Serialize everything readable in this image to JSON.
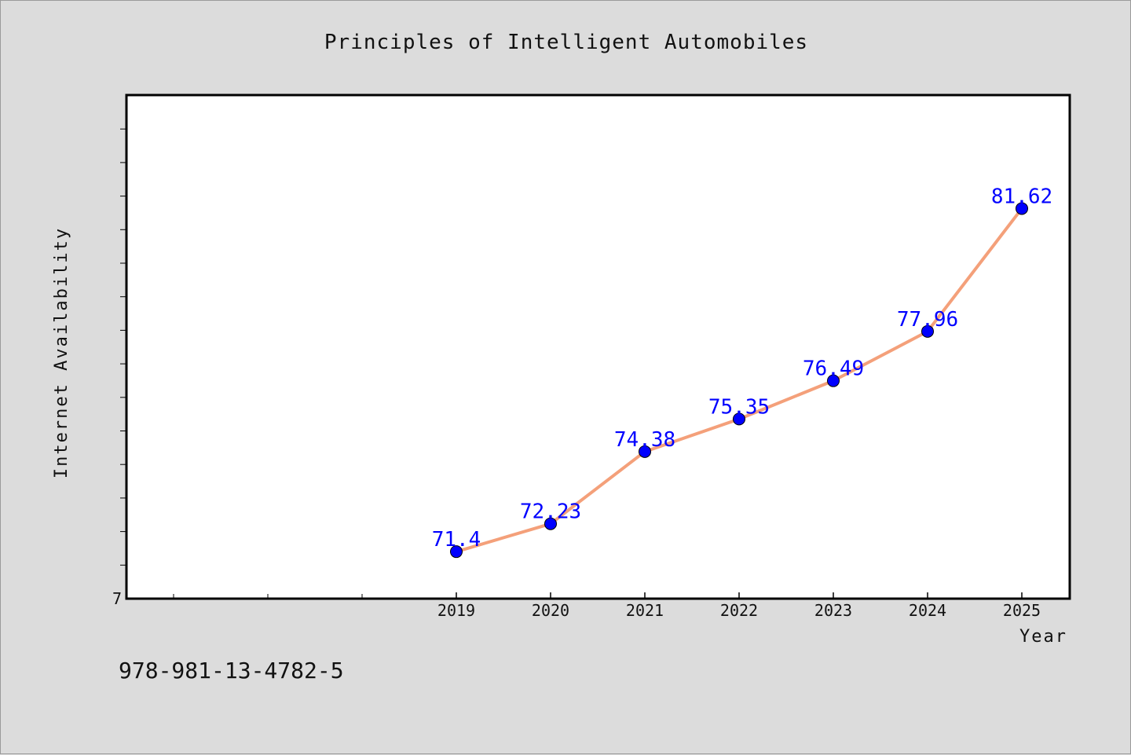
{
  "chart_data": {
    "type": "line",
    "title": "Principles of Intelligent Automobiles",
    "xlabel": "Year",
    "ylabel": "Internet Availability",
    "x": [
      "2019",
      "2020",
      "2021",
      "2022",
      "2023",
      "2024",
      "2025"
    ],
    "series": [
      {
        "values": [
          71.4,
          72.23,
          74.38,
          75.35,
          76.49,
          77.96,
          81.62
        ],
        "line_color": "#f4a07a",
        "marker_color": "#0000ff"
      }
    ],
    "data_labels": [
      "71.4",
      "72.23",
      "74.38",
      "75.35",
      "76.49",
      "77.96",
      "81.62"
    ],
    "y_tick_labels": [
      "7"
    ],
    "ylim": [
      70,
      85
    ],
    "grid": false,
    "legend": "none",
    "plot_background": "#ffffff",
    "figure_background": "#dcdcdc"
  },
  "footnote": "978-981-13-4782-5"
}
